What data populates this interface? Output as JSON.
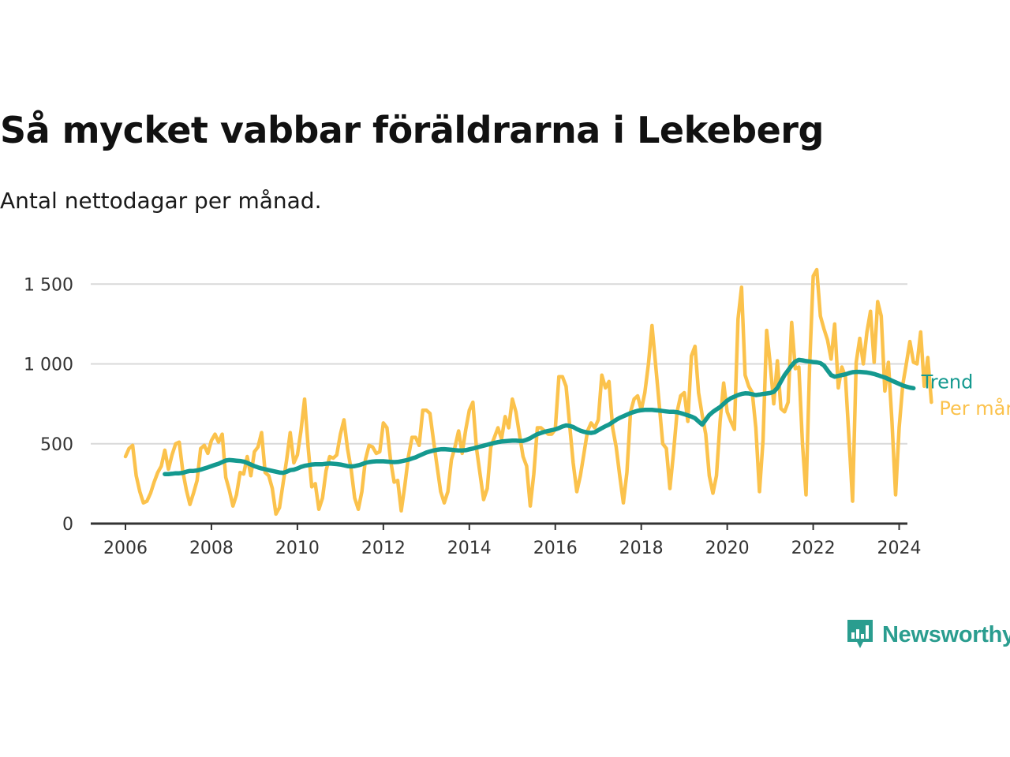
{
  "title": "Så mycket vabbar föräldrarna i Lekeberg",
  "subtitle": "Antal nettodagar per månad.",
  "brand": {
    "name": "Newsworthy",
    "color": "#2a9d8f",
    "icon": "newsworthy-bar-chart-bubble-icon"
  },
  "chart_data": {
    "type": "line",
    "x_axis": {
      "ticks": [
        "2006",
        "2008",
        "2010",
        "2012",
        "2014",
        "2016",
        "2018",
        "2020",
        "2022",
        "2024"
      ],
      "range": [
        2006,
        2025
      ]
    },
    "y_axis": {
      "ticks": [
        {
          "value": 0,
          "label": "0"
        },
        {
          "value": 500,
          "label": "500"
        },
        {
          "value": 1000,
          "label": "1 000"
        },
        {
          "value": 1500,
          "label": "1 500"
        }
      ],
      "range": [
        0,
        1600
      ]
    },
    "grid": true,
    "series": [
      {
        "name": "Per månad",
        "color": "#fbc24c",
        "start": "2006-01",
        "values": [
          420,
          470,
          490,
          300,
          200,
          130,
          140,
          190,
          260,
          320,
          360,
          460,
          340,
          430,
          500,
          510,
          330,
          210,
          120,
          190,
          270,
          470,
          490,
          440,
          520,
          560,
          510,
          560,
          290,
          210,
          110,
          180,
          320,
          310,
          420,
          300,
          450,
          480,
          570,
          320,
          300,
          220,
          60,
          100,
          250,
          400,
          570,
          380,
          430,
          580,
          780,
          480,
          230,
          250,
          90,
          160,
          330,
          420,
          410,
          430,
          560,
          650,
          470,
          340,
          160,
          90,
          200,
          400,
          490,
          480,
          440,
          450,
          630,
          600,
          400,
          260,
          270,
          80,
          240,
          420,
          540,
          540,
          490,
          710,
          710,
          690,
          520,
          360,
          200,
          130,
          200,
          400,
          480,
          580,
          440,
          590,
          710,
          760,
          470,
          310,
          150,
          220,
          480,
          540,
          600,
          530,
          670,
          600,
          780,
          700,
          560,
          420,
          360,
          110,
          310,
          600,
          600,
          580,
          560,
          560,
          590,
          920,
          920,
          860,
          620,
          380,
          200,
          300,
          440,
          580,
          630,
          600,
          650,
          930,
          850,
          890,
          600,
          480,
          300,
          130,
          320,
          700,
          780,
          800,
          710,
          820,
          1000,
          1240,
          1000,
          750,
          500,
          470,
          220,
          440,
          700,
          800,
          820,
          640,
          1050,
          1110,
          820,
          680,
          560,
          300,
          190,
          300,
          640,
          880,
          700,
          640,
          590,
          1280,
          1480,
          930,
          860,
          820,
          600,
          200,
          520,
          1210,
          1000,
          750,
          1020,
          720,
          700,
          760,
          1260,
          970,
          980,
          500,
          180,
          980,
          1550,
          1590,
          1300,
          1220,
          1150,
          1030,
          1250,
          850,
          980,
          920,
          530,
          140,
          1010,
          1160,
          1000,
          1200,
          1330,
          1010,
          1390,
          1300,
          830,
          1010,
          640,
          180,
          600,
          870,
          1000,
          1140,
          1010,
          1000,
          1200,
          860,
          1040,
          760
        ],
        "line_label": "Per månad"
      },
      {
        "name": "Trend",
        "color": "#14998f",
        "start": "2006-12",
        "values": [
          310,
          310,
          312,
          315,
          315,
          318,
          325,
          330,
          330,
          333,
          338,
          345,
          352,
          360,
          368,
          375,
          385,
          395,
          398,
          396,
          394,
          392,
          388,
          380,
          370,
          360,
          352,
          345,
          340,
          335,
          330,
          325,
          320,
          318,
          325,
          335,
          338,
          345,
          355,
          362,
          366,
          370,
          372,
          372,
          372,
          375,
          377,
          375,
          373,
          370,
          365,
          360,
          358,
          360,
          365,
          372,
          380,
          385,
          388,
          390,
          390,
          390,
          388,
          386,
          385,
          386,
          390,
          395,
          400,
          408,
          415,
          425,
          435,
          445,
          452,
          458,
          462,
          465,
          466,
          464,
          462,
          460,
          458,
          458,
          460,
          465,
          470,
          476,
          482,
          488,
          494,
          500,
          505,
          510,
          514,
          516,
          518,
          520,
          520,
          518,
          518,
          525,
          535,
          548,
          560,
          568,
          575,
          580,
          585,
          590,
          598,
          608,
          615,
          612,
          605,
          592,
          582,
          575,
          570,
          568,
          572,
          585,
          598,
          610,
          620,
          635,
          650,
          662,
          672,
          682,
          692,
          700,
          706,
          710,
          712,
          712,
          712,
          710,
          708,
          705,
          702,
          700,
          700,
          698,
          692,
          685,
          678,
          670,
          660,
          640,
          620,
          650,
          680,
          700,
          715,
          730,
          750,
          770,
          785,
          795,
          805,
          812,
          816,
          815,
          810,
          805,
          808,
          812,
          815,
          818,
          825,
          850,
          890,
          930,
          960,
          990,
          1015,
          1025,
          1022,
          1018,
          1015,
          1012,
          1010,
          1005,
          990,
          960,
          930,
          920,
          925,
          930,
          935,
          942,
          948,
          950,
          950,
          948,
          946,
          942,
          937,
          930,
          922,
          915,
          905,
          895,
          885,
          875,
          865,
          858,
          852,
          848
        ]
      }
    ]
  }
}
